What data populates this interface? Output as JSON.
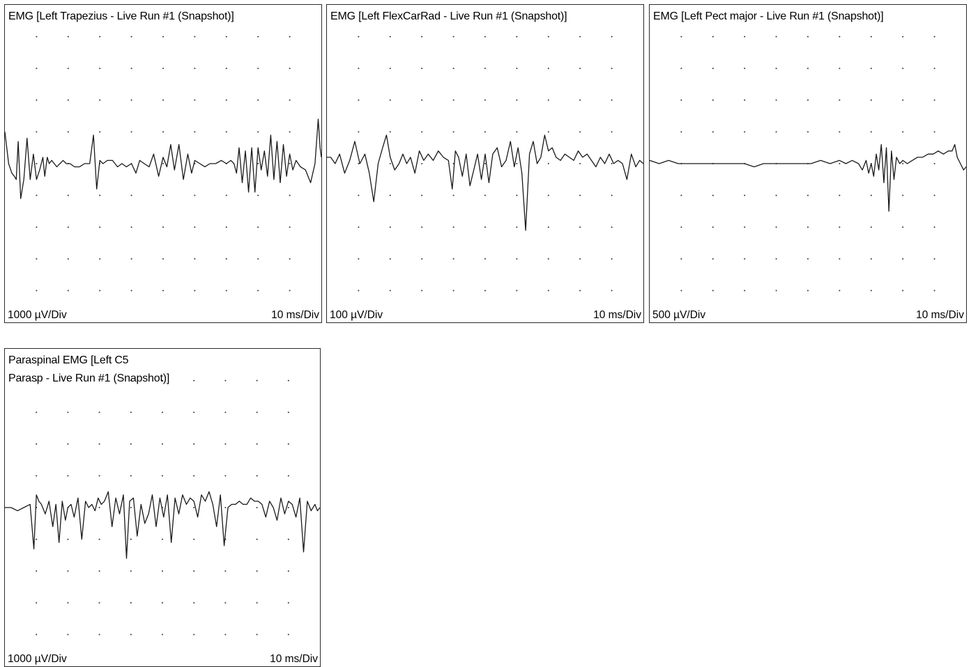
{
  "chart_data": [
    {
      "type": "line",
      "title": "EMG [Left Trapezius - Live Run #1 (Snapshot)]",
      "amplitude_scale": "1000 µV/Div",
      "time_scale": "10 ms/Div",
      "grid": "dotted",
      "divisions": {
        "x": 10,
        "y": 10
      },
      "series": [
        {
          "x": [
            0,
            0.6,
            1.1,
            1.5,
            1.8,
            2.1,
            2.5,
            3.0,
            3.5,
            4.0,
            4.5,
            5.0,
            5.5,
            6.0,
            6.3,
            6.7,
            7.0,
            7.4,
            7.8,
            8.2,
            8.7,
            9.2,
            9.7,
            10.3,
            11.0,
            11.8,
            12.6,
            13.4,
            14.0,
            14.5,
            15.0,
            15.5,
            16.2,
            17.0,
            17.8,
            18.5,
            19.2,
            20.0,
            20.7,
            21.3,
            22.0,
            22.8,
            23.5,
            24.3,
            25.0,
            25.6,
            26.2,
            26.8,
            27.5,
            28.2,
            28.9,
            29.5,
            30.0,
            30.8,
            31.6,
            32.4,
            33.3,
            34.2,
            35.0,
            35.7,
            36.2,
            36.6,
            37.0,
            37.5,
            38.0,
            38.5,
            39.0,
            39.5,
            40.0,
            40.5,
            41.0,
            41.5,
            42.0,
            42.5,
            43.0,
            43.5,
            44.0,
            44.5,
            45.0,
            45.5,
            46.0,
            46.7,
            47.5,
            48.3,
            49.0,
            49.5,
            49.8,
            50.0
          ],
          "y": [
            1.0,
            0.0,
            -0.3,
            -0.4,
            -0.5,
            0.7,
            -1.1,
            -0.5,
            0.8,
            -0.5,
            0.3,
            -0.5,
            -0.2,
            0.2,
            -0.4,
            0.2,
            0.0,
            0.1,
            0.0,
            -0.1,
            0.0,
            0.1,
            0.0,
            0.0,
            -0.1,
            -0.1,
            0.0,
            0.0,
            0.9,
            -0.8,
            0.1,
            0.0,
            0.1,
            0.1,
            -0.1,
            0.0,
            -0.1,
            0.0,
            -0.3,
            0.1,
            0.0,
            -0.1,
            0.3,
            -0.4,
            0.2,
            -0.1,
            0.6,
            -0.2,
            0.6,
            -0.5,
            0.3,
            -0.3,
            0.1,
            0.0,
            -0.1,
            0.0,
            0.0,
            0.1,
            0.0,
            0.1,
            0.0,
            -0.3,
            0.5,
            -0.6,
            0.4,
            -0.9,
            0.5,
            -0.9,
            0.5,
            -0.2,
            0.4,
            -0.4,
            0.9,
            -0.5,
            0.7,
            -0.6,
            0.6,
            -0.4,
            0.3,
            -0.2,
            0.1,
            -0.1,
            -0.2,
            -0.6,
            0.0,
            1.4,
            0.5,
            0.2
          ]
        }
      ]
    },
    {
      "type": "line",
      "title": "EMG [Left FlexCarRad - Live Run #1 (Snapshot)]",
      "amplitude_scale": "100 µV/Div",
      "time_scale": "10 ms/Div",
      "grid": "dotted",
      "divisions": {
        "x": 10,
        "y": 10
      },
      "series": [
        {
          "x": [
            0,
            0.6,
            1.3,
            2.0,
            2.8,
            3.6,
            4.4,
            5.2,
            6.0,
            6.7,
            7.4,
            8.1,
            8.8,
            9.4,
            10.0,
            10.7,
            11.4,
            12.0,
            12.6,
            13.2,
            13.9,
            14.6,
            15.3,
            16.0,
            16.8,
            17.6,
            18.4,
            19.2,
            19.8,
            20.3,
            20.8,
            21.4,
            22.0,
            22.6,
            23.2,
            23.8,
            24.4,
            25.0,
            25.6,
            26.2,
            26.9,
            27.6,
            28.3,
            29.0,
            29.6,
            30.2,
            30.8,
            31.4,
            32.0,
            32.6,
            33.2,
            33.8,
            34.4,
            35.0,
            35.6,
            36.2,
            36.9,
            37.6,
            38.3,
            39.0,
            39.7,
            40.4,
            41.1,
            41.8,
            42.5,
            43.2,
            43.9,
            44.6,
            45.3,
            46.0,
            46.7,
            47.4,
            48.1,
            48.8,
            49.4,
            50.0
          ],
          "y": [
            0.2,
            0.2,
            0.0,
            0.3,
            -0.3,
            0.1,
            0.7,
            0.0,
            0.3,
            -0.3,
            -1.2,
            0.0,
            0.5,
            0.9,
            0.2,
            -0.2,
            0.0,
            0.3,
            0.0,
            0.2,
            -0.3,
            0.4,
            0.1,
            0.3,
            0.1,
            0.4,
            0.2,
            0.1,
            -0.8,
            0.4,
            0.2,
            -0.4,
            0.3,
            -0.7,
            -0.2,
            0.3,
            -0.5,
            0.3,
            -0.6,
            0.3,
            0.5,
            -0.1,
            0.1,
            0.7,
            -0.1,
            0.5,
            -0.3,
            -2.1,
            0.3,
            0.7,
            0.0,
            0.2,
            0.9,
            0.4,
            0.5,
            0.2,
            0.1,
            0.3,
            0.2,
            0.1,
            0.4,
            0.2,
            0.3,
            0.1,
            -0.1,
            0.2,
            0.0,
            0.3,
            0.0,
            0.1,
            0.0,
            -0.5,
            0.3,
            -0.1,
            0.1,
            0.0
          ]
        }
      ]
    },
    {
      "type": "line",
      "title": "EMG [Left Pect major - Live Run #1 (Snapshot)]",
      "amplitude_scale": "500 µV/Div",
      "time_scale": "10 ms/Div",
      "grid": "dotted",
      "divisions": {
        "x": 10,
        "y": 10
      },
      "series": [
        {
          "x": [
            0,
            1.5,
            3.0,
            4.5,
            6.0,
            7.5,
            9.0,
            10.5,
            12.0,
            13.5,
            15.0,
            16.5,
            18.0,
            19.5,
            21.0,
            22.5,
            24.0,
            25.5,
            27.0,
            28.5,
            30.0,
            31.0,
            32.0,
            33.0,
            33.6,
            34.2,
            34.6,
            35.0,
            35.4,
            35.8,
            36.2,
            36.6,
            37.0,
            37.4,
            37.8,
            38.2,
            38.6,
            39.0,
            39.5,
            40.0,
            40.7,
            41.5,
            42.3,
            43.1,
            44.0,
            44.8,
            45.6,
            46.4,
            47.2,
            47.8,
            48.2,
            48.6,
            49.1,
            49.6,
            50.0
          ],
          "y": [
            0.1,
            0.0,
            0.1,
            0.0,
            0.0,
            0.0,
            0.0,
            0.0,
            0.0,
            0.0,
            0.0,
            -0.1,
            0.0,
            0.0,
            0.0,
            0.0,
            0.0,
            0.0,
            0.1,
            0.0,
            0.1,
            0.0,
            0.1,
            0.0,
            -0.2,
            0.1,
            -0.3,
            0.0,
            -0.4,
            0.3,
            -0.2,
            0.6,
            -0.6,
            0.5,
            -1.5,
            0.4,
            -0.5,
            0.2,
            0.0,
            0.1,
            0.0,
            0.1,
            0.2,
            0.2,
            0.3,
            0.3,
            0.4,
            0.3,
            0.4,
            0.4,
            0.6,
            0.2,
            0.0,
            -0.2,
            -0.1
          ]
        }
      ]
    },
    {
      "type": "line",
      "title": "Paraspinal EMG [Left C5 Parasp - Live Run #1 (Snapshot)]",
      "amplitude_scale": "1000 µV/Div",
      "time_scale": "10 ms/Div",
      "grid": "dotted",
      "divisions": {
        "x": 10,
        "y": 10
      },
      "series": [
        {
          "x": [
            0,
            1.0,
            2.0,
            3.0,
            4.0,
            4.6,
            5.0,
            5.4,
            5.8,
            6.4,
            7.0,
            7.6,
            8.1,
            8.6,
            9.1,
            9.6,
            10.0,
            10.5,
            11.0,
            11.6,
            12.2,
            12.8,
            13.3,
            13.8,
            14.3,
            14.8,
            15.3,
            15.8,
            16.4,
            17.0,
            17.6,
            18.2,
            18.8,
            19.3,
            19.8,
            20.4,
            21.0,
            21.6,
            22.2,
            22.8,
            23.4,
            24.0,
            24.6,
            25.2,
            25.8,
            26.4,
            27.0,
            27.6,
            28.2,
            28.8,
            29.4,
            30.0,
            30.6,
            31.2,
            31.8,
            32.4,
            33.0,
            33.6,
            34.2,
            34.8,
            35.4,
            36.0,
            36.6,
            37.2,
            37.8,
            38.4,
            39.0,
            39.6,
            40.2,
            40.8,
            41.4,
            42.0,
            42.6,
            43.2,
            43.8,
            44.4,
            45.0,
            45.6,
            46.2,
            46.8,
            47.4,
            48.0,
            48.6,
            49.2,
            49.6,
            50.0
          ],
          "y": [
            0.0,
            0.0,
            -0.1,
            0.0,
            0.1,
            -1.3,
            0.4,
            0.2,
            0.1,
            -0.2,
            0.2,
            -0.6,
            0.1,
            -1.1,
            0.2,
            -0.4,
            0.0,
            0.1,
            -0.3,
            0.3,
            -1.0,
            0.2,
            0.0,
            0.1,
            -0.1,
            0.3,
            0.1,
            0.2,
            0.5,
            -0.6,
            0.3,
            -0.2,
            0.4,
            -1.6,
            0.2,
            0.3,
            -0.9,
            0.1,
            -0.5,
            -0.2,
            0.4,
            -0.6,
            0.3,
            -0.3,
            0.4,
            -1.1,
            0.3,
            -0.2,
            0.4,
            0.1,
            0.3,
            0.2,
            -0.3,
            0.4,
            0.2,
            0.5,
            0.1,
            -0.6,
            0.4,
            -1.2,
            0.0,
            0.1,
            0.1,
            0.2,
            0.1,
            0.1,
            0.3,
            0.2,
            0.2,
            0.1,
            -0.3,
            0.2,
            0.0,
            -0.4,
            0.3,
            -0.2,
            0.2,
            0.1,
            -0.3,
            0.3,
            -1.4,
            0.2,
            -0.1,
            0.1,
            -0.1,
            0.0
          ]
        }
      ]
    }
  ],
  "panels": [
    {
      "title_lines": [
        "EMG [Left Trapezius - Live Run #1 (Snapshot)]"
      ],
      "amplitude_label": "1000 µV/Div",
      "time_label": "10 ms/Div"
    },
    {
      "title_lines": [
        "EMG [Left FlexCarRad - Live Run #1 (Snapshot)]"
      ],
      "amplitude_label": "100 µV/Div",
      "time_label": "10 ms/Div"
    },
    {
      "title_lines": [
        "EMG [Left Pect major - Live Run #1 (Snapshot)]"
      ],
      "amplitude_label": "500 µV/Div",
      "time_label": "10 ms/Div"
    },
    {
      "title_lines": [
        "Paraspinal EMG [Left C5",
        "Parasp - Live Run #1 (Snapshot)]"
      ],
      "amplitude_label": "1000 µV/Div",
      "time_label": "10 ms/Div"
    }
  ],
  "colors": {
    "trace": "#1a1a1a",
    "grid_dot": "#333333",
    "border": "#2b2b2b",
    "background": "#ffffff"
  }
}
